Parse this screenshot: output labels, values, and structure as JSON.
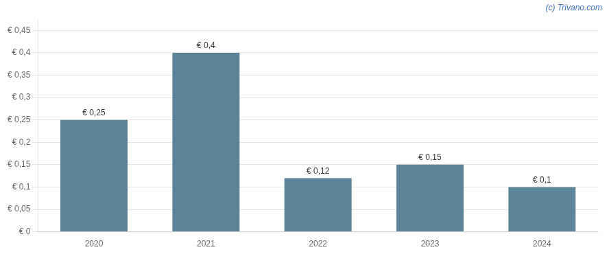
{
  "chart_data": {
    "type": "bar",
    "categories": [
      "2020",
      "2021",
      "2022",
      "2023",
      "2024"
    ],
    "values": [
      0.25,
      0.4,
      0.12,
      0.15,
      0.1
    ],
    "value_labels": [
      "€ 0,25",
      "€ 0,4",
      "€ 0,12",
      "€ 0,15",
      "€ 0,1"
    ],
    "data_labels": true,
    "color": "#5d8498",
    "ylim": [
      0,
      0.475
    ],
    "yticks": [
      {
        "value": 0.0,
        "label": "€ 0"
      },
      {
        "value": 0.05,
        "label": "€ 0,05"
      },
      {
        "value": 0.1,
        "label": "€ 0,1"
      },
      {
        "value": 0.15,
        "label": "€ 0,15"
      },
      {
        "value": 0.2,
        "label": "€ 0,2"
      },
      {
        "value": 0.25,
        "label": "€ 0,25"
      },
      {
        "value": 0.3,
        "label": "€ 0,3"
      },
      {
        "value": 0.35,
        "label": "€ 0,35"
      },
      {
        "value": 0.4,
        "label": "€ 0,4"
      },
      {
        "value": 0.45,
        "label": "€ 0,45"
      }
    ],
    "grid": true,
    "annotations": [
      {
        "text": "(c) Trivano.com",
        "color": "#4472c4"
      }
    ]
  }
}
